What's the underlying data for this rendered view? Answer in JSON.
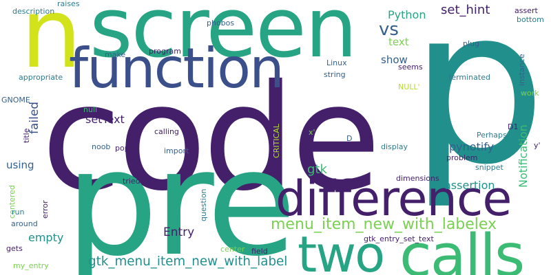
{
  "palette": {
    "background": "#ffffff",
    "dark_purple": "#44206b",
    "indigo": "#3b4f8a",
    "slate": "#35608d",
    "blue_grey": "#2c7c8e",
    "teal": "#21908c",
    "green_teal": "#27a483",
    "green": "#3cbb75",
    "light_green": "#7ad151",
    "lime": "#b5de2b",
    "yellow": "#d2e21b"
  },
  "words": [
    {
      "text": "code",
      "color": "#44206b",
      "orientation": "horizontal"
    },
    {
      "text": "p",
      "color": "#21908c",
      "orientation": "horizontal"
    },
    {
      "text": "pre",
      "color": "#27a483",
      "orientation": "horizontal"
    },
    {
      "text": "screen",
      "color": "#27a483",
      "orientation": "horizontal"
    },
    {
      "text": "n",
      "color": "#d2e21b",
      "orientation": "horizontal"
    },
    {
      "text": "function",
      "color": "#3b4f8a",
      "orientation": "horizontal"
    },
    {
      "text": "difference",
      "color": "#44206b",
      "orientation": "horizontal"
    },
    {
      "text": "calls",
      "color": "#3cbb75",
      "orientation": "horizontal"
    },
    {
      "text": "two",
      "color": "#27a483",
      "orientation": "horizontal"
    },
    {
      "text": "vs",
      "color": "#35608d",
      "orientation": "horizontal"
    },
    {
      "text": "menu_item_new_with_labelex",
      "color": "#7ad151",
      "orientation": "horizontal"
    },
    {
      "text": "gtk_menu_item_new_with_label",
      "color": "#21908c",
      "orientation": "horizontal"
    },
    {
      "text": "set_hint",
      "color": "#44206b",
      "orientation": "horizontal"
    },
    {
      "text": "Python",
      "color": "#27a483",
      "orientation": "horizontal"
    },
    {
      "text": "text",
      "color": "#7ad151",
      "orientation": "horizontal"
    },
    {
      "text": "show",
      "color": "#35608d",
      "orientation": "horizontal"
    },
    {
      "text": "pynotify",
      "color": "#35608d",
      "orientation": "horizontal"
    },
    {
      "text": "setText",
      "color": "#44206b",
      "orientation": "horizontal"
    },
    {
      "text": "failed",
      "color": "#3b4f8a",
      "orientation": "vertical"
    },
    {
      "text": "gtk",
      "color": "#3cbb75",
      "orientation": "horizontal"
    },
    {
      "text": "assertion",
      "color": "#21908c",
      "orientation": "horizontal"
    },
    {
      "text": "Notification",
      "color": "#3cbb75",
      "orientation": "vertical"
    },
    {
      "text": "Entry",
      "color": "#44206b",
      "orientation": "horizontal"
    },
    {
      "text": "empty",
      "color": "#21908c",
      "orientation": "horizontal"
    },
    {
      "text": "using",
      "color": "#35608d",
      "orientation": "horizontal"
    },
    {
      "text": "description",
      "color": "#2c7c8e",
      "orientation": "horizontal"
    },
    {
      "text": "raises",
      "color": "#2c7c8e",
      "orientation": "horizontal"
    },
    {
      "text": "phobos",
      "color": "#35608d",
      "orientation": "horizontal"
    },
    {
      "text": "make",
      "color": "#35608d",
      "orientation": "horizontal"
    },
    {
      "text": "program",
      "color": "#44206b",
      "orientation": "horizontal"
    },
    {
      "text": "appropriate",
      "color": "#2c7c8e",
      "orientation": "horizontal"
    },
    {
      "text": "GNOME",
      "color": "#35608d",
      "orientation": "horizontal"
    },
    {
      "text": "title",
      "color": "#44206b",
      "orientation": "vertical"
    },
    {
      "text": "null",
      "color": "#3cbb75",
      "orientation": "horizontal"
    },
    {
      "text": "calling",
      "color": "#44206b",
      "orientation": "horizontal"
    },
    {
      "text": "noob",
      "color": "#35608d",
      "orientation": "horizontal"
    },
    {
      "text": "pop",
      "color": "#44206b",
      "orientation": "horizontal"
    },
    {
      "text": "import",
      "color": "#35608d",
      "orientation": "horizontal"
    },
    {
      "text": "tried",
      "color": "#44206b",
      "orientation": "horizontal"
    },
    {
      "text": "question",
      "color": "#2c7c8e",
      "orientation": "vertical"
    },
    {
      "text": "centered",
      "color": "#7ad151",
      "orientation": "vertical"
    },
    {
      "text": "run",
      "color": "#2c7c8e",
      "orientation": "horizontal"
    },
    {
      "text": "error",
      "color": "#44206b",
      "orientation": "vertical"
    },
    {
      "text": "around",
      "color": "#35608d",
      "orientation": "horizontal"
    },
    {
      "text": "gets",
      "color": "#44206b",
      "orientation": "horizontal"
    },
    {
      "text": "my_entry",
      "color": "#7ad151",
      "orientation": "horizontal"
    },
    {
      "text": "center",
      "color": "#7ad151",
      "orientation": "horizontal"
    },
    {
      "text": "field",
      "color": "#44206b",
      "orientation": "horizontal"
    },
    {
      "text": "gtk_entry_set_text",
      "color": "#44206b",
      "orientation": "horizontal"
    },
    {
      "text": "Linux",
      "color": "#35608d",
      "orientation": "horizontal"
    },
    {
      "text": "string",
      "color": "#35608d",
      "orientation": "horizontal"
    },
    {
      "text": "plug",
      "color": "#35608d",
      "orientation": "horizontal"
    },
    {
      "text": "seems",
      "color": "#44206b",
      "orientation": "horizontal"
    },
    {
      "text": "terminated",
      "color": "#2c7c8e",
      "orientation": "horizontal"
    },
    {
      "text": "NULL'",
      "color": "#b5de2b",
      "orientation": "horizontal"
    },
    {
      "text": "CRITICAL",
      "color": "#b5de2b",
      "orientation": "vertical"
    },
    {
      "text": "x'",
      "color": "#7ad151",
      "orientation": "horizontal"
    },
    {
      "text": "D",
      "color": "#35608d",
      "orientation": "horizontal"
    },
    {
      "text": "display",
      "color": "#2c7c8e",
      "orientation": "horizontal"
    },
    {
      "text": "problem",
      "color": "#44206b",
      "orientation": "horizontal"
    },
    {
      "text": "dimensions",
      "color": "#44206b",
      "orientation": "horizontal"
    },
    {
      "text": "time",
      "color": "#44206b",
      "orientation": "horizontal"
    },
    {
      "text": "snippet",
      "color": "#2c7c8e",
      "orientation": "horizontal"
    },
    {
      "text": "Perhaps",
      "color": "#2c7c8e",
      "orientation": "horizontal"
    },
    {
      "text": "D1",
      "color": "#44206b",
      "orientation": "horizontal"
    },
    {
      "text": "y'",
      "color": "#44206b",
      "orientation": "horizontal"
    },
    {
      "text": "assert",
      "color": "#44206b",
      "orientation": "horizontal"
    },
    {
      "text": "bottom",
      "color": "#2c7c8e",
      "orientation": "horizontal"
    },
    {
      "text": "instance",
      "color": "#35608d",
      "orientation": "vertical"
    },
    {
      "text": "work",
      "color": "#7ad151",
      "orientation": "horizontal"
    }
  ]
}
